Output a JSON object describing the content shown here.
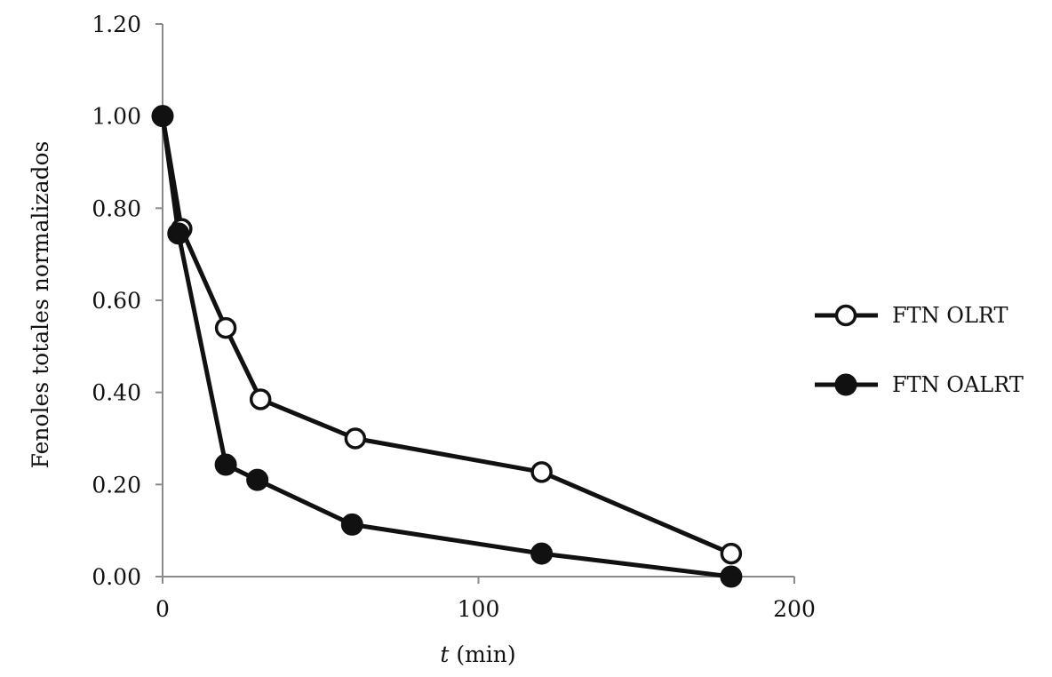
{
  "chart_data": {
    "type": "line",
    "xlabel_italic": "t",
    "xlabel_rest": " (min)",
    "ylabel": "Fenoles totales  normalizados",
    "xlim": [
      0,
      200
    ],
    "ylim": [
      0,
      1.2
    ],
    "x_ticks": [
      "0",
      "100",
      "200"
    ],
    "y_ticks": [
      "0.00",
      "0.20",
      "0.40",
      "0.60",
      "0.80",
      "1.00",
      "1.20"
    ],
    "legend_position": "right",
    "grid": false,
    "series": [
      {
        "name": "FTN OLRT",
        "marker": "open-circle",
        "color": "#111111",
        "points": [
          [
            0,
            1.0
          ],
          [
            6,
            0.755
          ],
          [
            20,
            0.54
          ],
          [
            31,
            0.385
          ],
          [
            61,
            0.3
          ],
          [
            120,
            0.227
          ],
          [
            180,
            0.05
          ]
        ]
      },
      {
        "name": "FTN OALRT",
        "marker": "filled-circle",
        "color": "#111111",
        "points": [
          [
            0,
            1.0
          ],
          [
            5,
            0.745
          ],
          [
            20,
            0.243
          ],
          [
            30,
            0.21
          ],
          [
            60,
            0.113
          ],
          [
            120,
            0.05
          ],
          [
            180,
            0.0
          ]
        ]
      }
    ]
  }
}
